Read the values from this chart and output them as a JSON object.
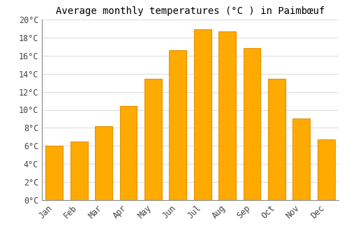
{
  "title": "Average monthly temperatures (°C ) in Paimbœuf",
  "months": [
    "Jan",
    "Feb",
    "Mar",
    "Apr",
    "May",
    "Jun",
    "Jul",
    "Aug",
    "Sep",
    "Oct",
    "Nov",
    "Dec"
  ],
  "values": [
    6.0,
    6.5,
    8.2,
    10.4,
    13.4,
    16.6,
    18.9,
    18.7,
    16.8,
    13.4,
    9.0,
    6.7
  ],
  "bar_color": "#FFAA00",
  "bar_edge_color": "#E89000",
  "ylim": [
    0,
    20
  ],
  "yticks": [
    0,
    2,
    4,
    6,
    8,
    10,
    12,
    14,
    16,
    18,
    20
  ],
  "ytick_labels": [
    "0°C",
    "2°C",
    "4°C",
    "6°C",
    "8°C",
    "10°C",
    "12°C",
    "14°C",
    "16°C",
    "18°C",
    "20°C"
  ],
  "background_color": "#ffffff",
  "grid_color": "#dddddd",
  "title_fontsize": 10,
  "tick_fontsize": 8.5,
  "bar_width": 0.7
}
